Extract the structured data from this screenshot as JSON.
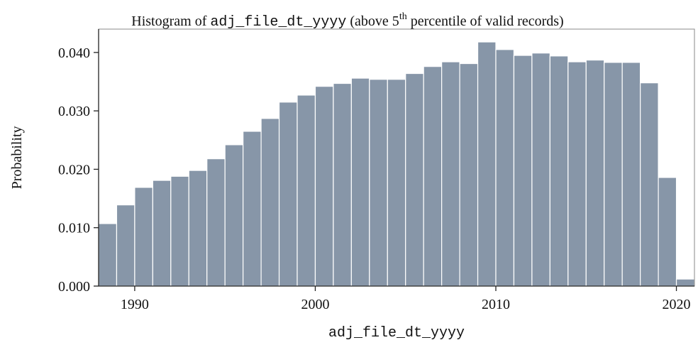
{
  "chart_data": {
    "type": "histogram",
    "title": [
      "Histogram of ",
      "adj_file_dt_yyyy",
      " (above 5",
      "th",
      " percentile of valid records)"
    ],
    "x_label": "adj_file_dt_yyyy",
    "y_label": "Probability",
    "bins": [
      1988,
      1989,
      1990,
      1991,
      1992,
      1993,
      1994,
      1995,
      1996,
      1997,
      1998,
      1999,
      2000,
      2001,
      2002,
      2003,
      2004,
      2005,
      2006,
      2007,
      2008,
      2009,
      2010,
      2011,
      2012,
      2013,
      2014,
      2015,
      2016,
      2017,
      2018,
      2019,
      2020,
      2021
    ],
    "values": [
      0.0107,
      0.0139,
      0.0169,
      0.0181,
      0.0188,
      0.0198,
      0.0218,
      0.0242,
      0.0265,
      0.0287,
      0.0315,
      0.0327,
      0.0342,
      0.0347,
      0.0356,
      0.0354,
      0.0354,
      0.0364,
      0.0376,
      0.0384,
      0.0381,
      0.0418,
      0.0405,
      0.0395,
      0.0399,
      0.0394,
      0.0384,
      0.0387,
      0.0383,
      0.0383,
      0.0348,
      0.0186,
      0.0012
    ],
    "color": "#8796a8",
    "xlim": [
      1988,
      2021
    ],
    "ylim": [
      0,
      0.044
    ],
    "xticks": [
      1990,
      2000,
      2010,
      2020
    ],
    "yticks": [
      {
        "value": 0,
        "label": "0.000"
      },
      {
        "value": 0.01,
        "label": "0.010"
      },
      {
        "value": 0.02,
        "label": "0.020"
      },
      {
        "value": 0.03,
        "label": "0.030"
      },
      {
        "value": 0.04,
        "label": "0.040"
      }
    ]
  }
}
